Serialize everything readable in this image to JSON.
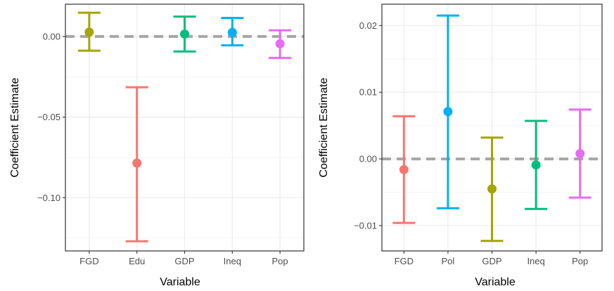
{
  "chart_data": [
    {
      "type": "errorbar",
      "xlabel": "Variable",
      "ylabel": "Coefficient Estimate",
      "ylim": [
        -0.133,
        0.02
      ],
      "yticks": [
        0.0,
        -0.05,
        -0.1
      ],
      "ytick_labels": [
        "0.00",
        "−0.05",
        "−0.10"
      ],
      "grid": true,
      "reference_line": 0,
      "categories": [
        "FGD",
        "Edu",
        "GDP",
        "Ineq",
        "Pop"
      ],
      "estimates": [
        0.0027,
        -0.0785,
        0.0015,
        0.0025,
        -0.0045
      ],
      "lower": [
        -0.0088,
        -0.127,
        -0.0093,
        -0.0055,
        -0.0133
      ],
      "upper": [
        0.0147,
        -0.0315,
        0.0123,
        0.0115,
        0.0038
      ],
      "colors": [
        "#a3a500",
        "#f8766d",
        "#00bf7d",
        "#00b0f6",
        "#e76bf3"
      ]
    },
    {
      "type": "errorbar",
      "xlabel": "Variable",
      "ylabel": "Coefficient Estimate",
      "ylim": [
        -0.0138,
        0.0232
      ],
      "yticks": [
        0.02,
        0.01,
        0.0,
        -0.01
      ],
      "ytick_labels": [
        "0.02",
        "0.01",
        "0.00",
        "−0.01"
      ],
      "grid": true,
      "reference_line": 0,
      "categories": [
        "FGD",
        "Pol",
        "GDP",
        "Ineq",
        "Pop"
      ],
      "estimates": [
        -0.0016,
        0.0071,
        -0.0045,
        -0.0009,
        0.0008
      ],
      "lower": [
        -0.0096,
        -0.0074,
        -0.0123,
        -0.0075,
        -0.0058
      ],
      "upper": [
        0.0064,
        0.0215,
        0.0032,
        0.0057,
        0.0074
      ],
      "colors": [
        "#f8766d",
        "#00b0f6",
        "#a3a500",
        "#00bf7d",
        "#e76bf3"
      ]
    }
  ]
}
